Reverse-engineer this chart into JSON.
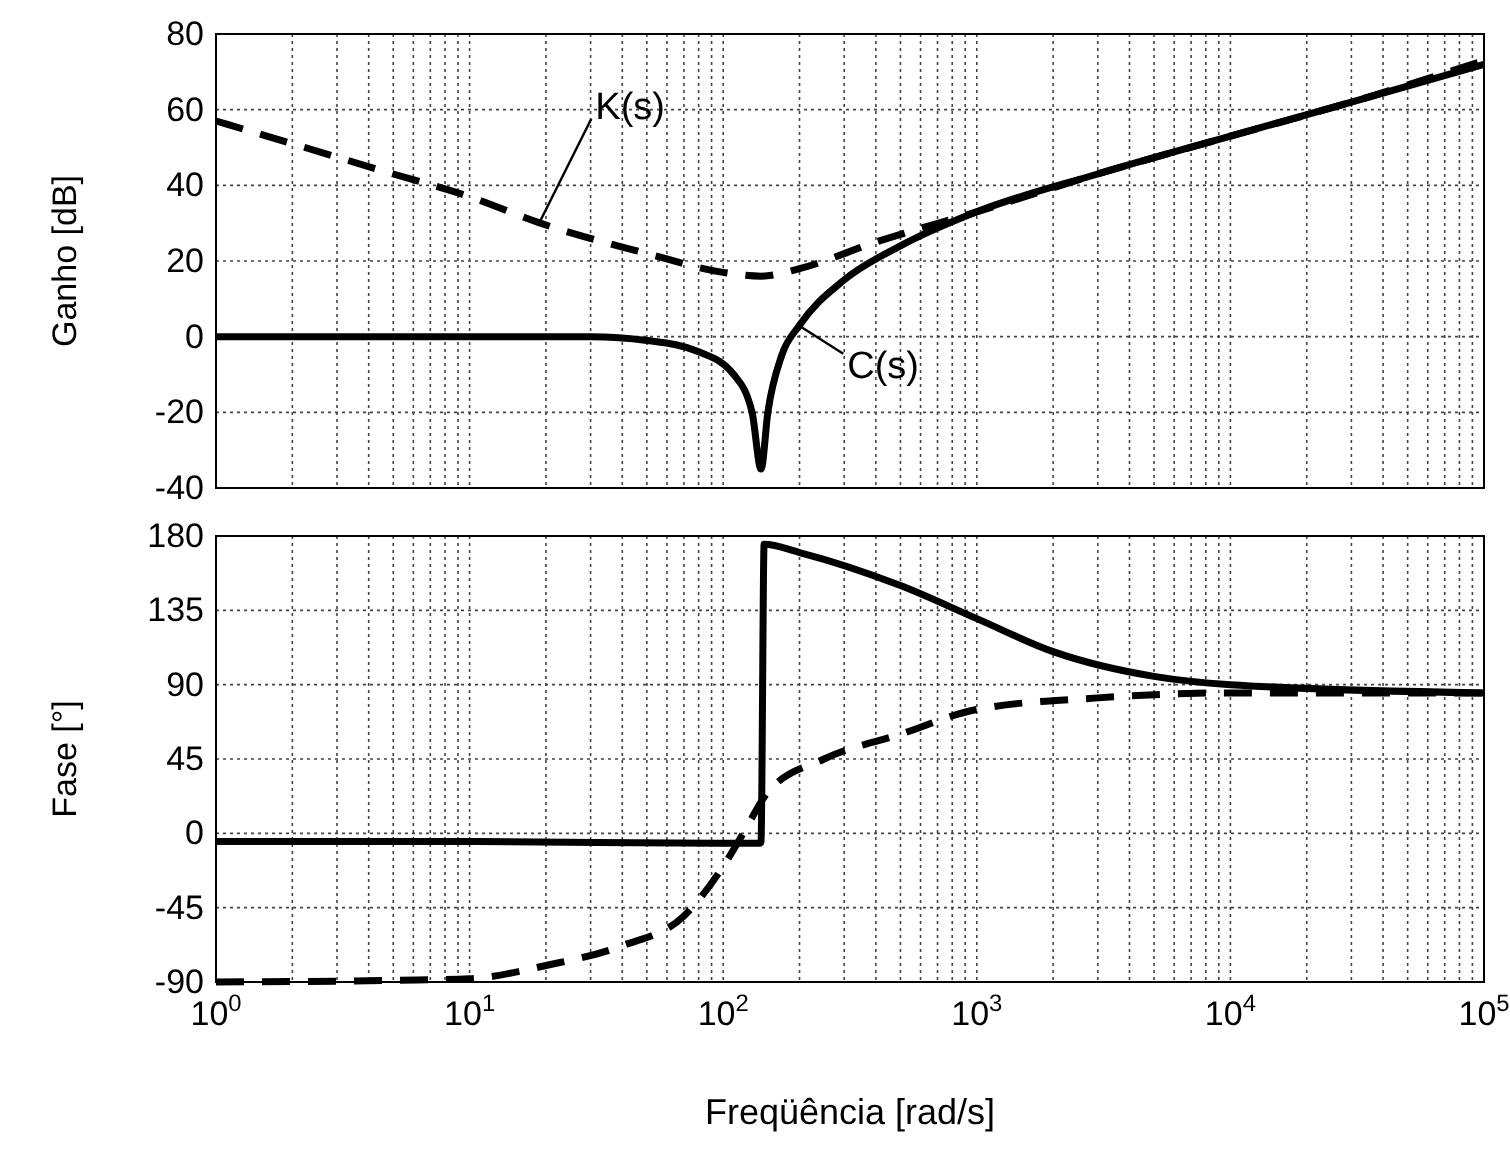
{
  "chart_data": [
    {
      "type": "line",
      "ylabel": "Ganho  [dB]",
      "log": "x",
      "grid": true,
      "tick_labels": "y",
      "xlim": [
        1,
        100000
      ],
      "ylim": [
        -40,
        80
      ],
      "xticks": [
        {
          "value": 1,
          "label": null
        },
        {
          "value": 10,
          "label": null
        },
        {
          "value": 100,
          "label": null
        },
        {
          "value": 1000,
          "label": null
        },
        {
          "value": 10000,
          "label": null
        },
        {
          "value": 100000,
          "label": null
        }
      ],
      "yticks": [
        -40,
        -20,
        0,
        20,
        40,
        60,
        80
      ],
      "marker": "none",
      "series": [
        {
          "name": "K(s)",
          "color": "#000000",
          "line_style": "dashed",
          "x": [
            1,
            2,
            5,
            10,
            19,
            50,
            100,
            141,
            200,
            400,
            1000,
            3000,
            10000,
            30000,
            100000
          ],
          "values": [
            57,
            51,
            43,
            37,
            30,
            22,
            17,
            16,
            18,
            25,
            33,
            43,
            53,
            62,
            73
          ]
        },
        {
          "name": "C(s)",
          "color": "#000000",
          "line_style": "solid",
          "x": [
            1,
            10,
            30,
            50,
            80,
            110,
            130,
            141,
            150,
            170,
            200,
            300,
            500,
            1000,
            3000,
            10000,
            30000,
            100000
          ],
          "values": [
            0,
            0,
            0,
            -1,
            -4,
            -10,
            -20,
            -35,
            -20,
            -5,
            3,
            15,
            24,
            33,
            43,
            53,
            62,
            72
          ]
        }
      ]
    },
    {
      "type": "line",
      "xlabel": "Freqüência  [rad/s]",
      "ylabel": "Fase [°]",
      "log": "x",
      "grid": true,
      "xlim": [
        1,
        100000
      ],
      "ylim": [
        -90,
        180
      ],
      "xticks": [
        {
          "value": 1,
          "label": "10$^{0}$"
        },
        {
          "value": 10,
          "label": "10$^{1}$"
        },
        {
          "value": 100,
          "label": "10$^{2}$"
        },
        {
          "value": 1000,
          "label": "10$^{3}$"
        },
        {
          "value": 10000,
          "label": "10$^{4}$"
        },
        {
          "value": 100000,
          "label": "10$^{5}$"
        }
      ],
      "yticks": [
        -90,
        -45,
        0,
        45,
        90,
        135,
        180
      ],
      "marker": "none",
      "series": [
        {
          "color": "#000000",
          "line_style": "dashed",
          "x": [
            1,
            5,
            10,
            20,
            40,
            70,
            100,
            120,
            150,
            250,
            500,
            1000,
            3000,
            10000,
            100000
          ],
          "values": [
            -90,
            -89,
            -88,
            -80,
            -68,
            -50,
            -20,
            0,
            25,
            45,
            60,
            75,
            82,
            85,
            85
          ]
        },
        {
          "color": "#000000",
          "line_style": "solid",
          "x": [
            1,
            10,
            100,
            140,
            141,
            145,
            200,
            500,
            1000,
            2000,
            5000,
            10000,
            100000
          ],
          "values": [
            -5,
            -5,
            -6,
            -6,
            -5,
            175,
            170,
            150,
            130,
            110,
            95,
            90,
            85
          ]
        }
      ]
    }
  ]
}
